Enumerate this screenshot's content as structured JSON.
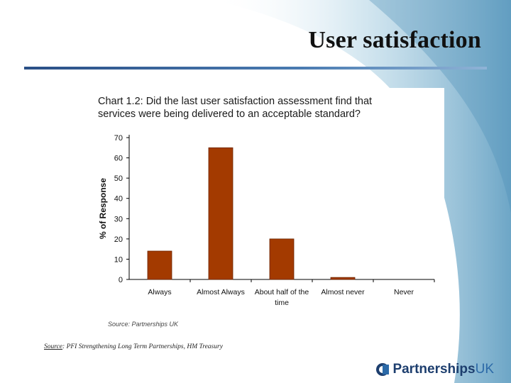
{
  "slide": {
    "title": "User satisfaction",
    "footer_source_label": "Source",
    "footer_source_text": ": PFI Strengthening Long Term Partnerships, HM Treasury",
    "logo_main": "Partnerships",
    "logo_suffix": "UK",
    "colors": {
      "bar": "#a33a00",
      "rule": "#2a4f86",
      "wave": "#7fb2d0"
    }
  },
  "chart_data": {
    "type": "bar",
    "title": "Chart 1.2:  Did the last user satisfaction assessment find that services were being delivered to an acceptable standard?",
    "title_lines": [
      "Chart 1.2:  Did the last user satisfaction assessment find that",
      "services were being delivered to an acceptable standard?"
    ],
    "categories": [
      "Always",
      "Almost Always",
      "About half of the time",
      "Almost never",
      "Never"
    ],
    "category_lines": [
      [
        "Always"
      ],
      [
        "Almost Always"
      ],
      [
        "About half of the",
        "time"
      ],
      [
        "Almost never"
      ],
      [
        "Never"
      ]
    ],
    "values": [
      14,
      65,
      20,
      1,
      0
    ],
    "ylabel": "% of Response",
    "xlabel": "",
    "ylim": [
      0,
      70
    ],
    "yticks": [
      0,
      10,
      20,
      30,
      40,
      50,
      60,
      70
    ],
    "grid": false,
    "legend": "none",
    "source_note": "Source: Partnerships UK"
  }
}
